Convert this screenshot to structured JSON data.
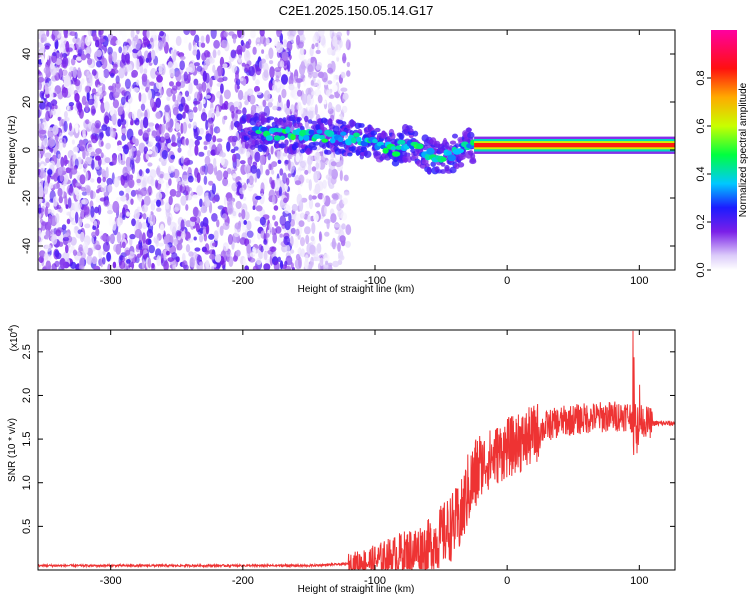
{
  "title": "C2E1.2025.150.05.14.G17",
  "colors": {
    "snr_line": "#ee3333",
    "spectrum_low": "#c8b4f5",
    "spectrum_mid": "#6a1fe8",
    "axis": "#000000"
  },
  "chart_data": [
    {
      "type": "heatmap",
      "title": "",
      "xlabel": "Height of straight line (km)",
      "ylabel": "Frequency (Hz)",
      "xlim": [
        -355,
        127
      ],
      "ylim": [
        -50,
        50
      ],
      "x_ticks": [
        -300,
        -200,
        -100,
        0,
        100
      ],
      "y_ticks": [
        -40,
        -20,
        0,
        20,
        40
      ],
      "colorbar": {
        "label": "Normalized spectral amplitude",
        "range": [
          0,
          1
        ],
        "ticks": [
          0.0,
          0.2,
          0.4,
          0.6,
          0.8
        ],
        "tick_labels": [
          "0.0",
          "0.2",
          "0.4",
          "0.6",
          "0.8"
        ],
        "colormap": "rainbow (white, violet, blue, cyan, green, yellow, red, magenta)"
      },
      "tone_centerline": [
        {
          "x": -185,
          "y": 7
        },
        {
          "x": -150,
          "y": 6
        },
        {
          "x": -120,
          "y": 5
        },
        {
          "x": -100,
          "y": 3
        },
        {
          "x": -85,
          "y": 0
        },
        {
          "x": -75,
          "y": 3
        },
        {
          "x": -60,
          "y": -2
        },
        {
          "x": -45,
          "y": -3
        },
        {
          "x": -30,
          "y": 2
        },
        {
          "x": 0,
          "y": 2
        },
        {
          "x": 50,
          "y": 2
        },
        {
          "x": 127,
          "y": 2
        }
      ]
    },
    {
      "type": "line",
      "title": "",
      "xlabel": "Height of straight line (km)",
      "ylabel": "SNR (10 * v/v)",
      "y_multiplier": "(x10^4)",
      "xlim": [
        -355,
        127
      ],
      "ylim": [
        0,
        2.75
      ],
      "x_ticks": [
        -300,
        -200,
        -100,
        0,
        100
      ],
      "y_ticks": [
        0.5,
        1.0,
        1.5,
        2.0,
        2.5
      ],
      "y_tick_labels": [
        "0.5",
        "1.0",
        "1.5",
        "2.0",
        "2.5"
      ],
      "series": [
        {
          "x": [
            -355,
            -300,
            -200,
            -150,
            -120,
            -100,
            -80,
            -60,
            -45,
            -35,
            -30,
            -25,
            -20,
            -15,
            -10,
            -5,
            0,
            10,
            20,
            30,
            40,
            50,
            60,
            70,
            80,
            90,
            95,
            100,
            105,
            110,
            127
          ],
          "y": [
            0.05,
            0.05,
            0.05,
            0.05,
            0.07,
            0.1,
            0.18,
            0.25,
            0.45,
            0.6,
            0.9,
            1.05,
            1.2,
            1.25,
            1.3,
            1.35,
            1.4,
            1.45,
            1.55,
            1.65,
            1.7,
            1.72,
            1.74,
            1.75,
            1.76,
            1.77,
            1.75,
            1.72,
            1.7,
            1.68,
            1.68
          ]
        }
      ]
    }
  ]
}
